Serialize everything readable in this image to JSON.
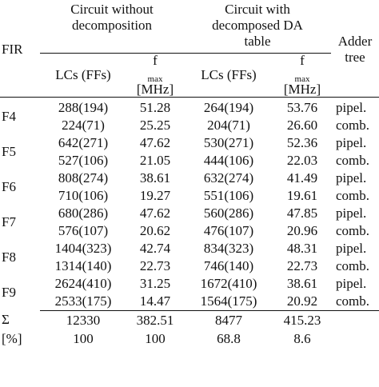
{
  "header": {
    "fir": "FIR",
    "group_a_line1": "Circuit without",
    "group_a_line2": "decomposition",
    "group_b_line1": "Circuit with",
    "group_b_line2": "decomposed DA",
    "group_b_line3": "table",
    "adder_line1": "Adder",
    "adder_line2": "tree",
    "lcs_a": "LCs (FFs)",
    "fmax_a_main": "f",
    "fmax_a_sub": "max",
    "fmax_a_unit": "[MHz]",
    "lcs_b": "LCs (FFs)",
    "fmax_b_main": "f",
    "fmax_b_sub": "max",
    "fmax_b_unit": "[MHz]"
  },
  "groups": [
    {
      "name": "F4",
      "rows": [
        {
          "lc_a": "288(194)",
          "fmax_a": "51.28",
          "lc_b": "264(194)",
          "fmax_b": "53.76",
          "adder": "pipel."
        },
        {
          "lc_a": "224(71)",
          "fmax_a": "25.25",
          "lc_b": "204(71)",
          "fmax_b": "26.60",
          "adder": "comb."
        }
      ]
    },
    {
      "name": "F5",
      "rows": [
        {
          "lc_a": "642(271)",
          "fmax_a": "47.62",
          "lc_b": "530(271)",
          "fmax_b": "52.36",
          "adder": "pipel."
        },
        {
          "lc_a": "527(106)",
          "fmax_a": "21.05",
          "lc_b": "444(106)",
          "fmax_b": "22.03",
          "adder": "comb."
        }
      ]
    },
    {
      "name": "F6",
      "rows": [
        {
          "lc_a": "808(274)",
          "fmax_a": "38.61",
          "lc_b": "632(274)",
          "fmax_b": "41.49",
          "adder": "pipel."
        },
        {
          "lc_a": "710(106)",
          "fmax_a": "19.27",
          "lc_b": "551(106)",
          "fmax_b": "19.61",
          "adder": "comb."
        }
      ]
    },
    {
      "name": "F7",
      "rows": [
        {
          "lc_a": "680(286)",
          "fmax_a": "47.62",
          "lc_b": "560(286)",
          "fmax_b": "47.85",
          "adder": "pipel."
        },
        {
          "lc_a": "576(107)",
          "fmax_a": "20.62",
          "lc_b": "476(107)",
          "fmax_b": "20.96",
          "adder": "comb."
        }
      ]
    },
    {
      "name": "F8",
      "rows": [
        {
          "lc_a": "1404(323)",
          "fmax_a": "42.74",
          "lc_b": "834(323)",
          "fmax_b": "48.31",
          "adder": "pipel."
        },
        {
          "lc_a": "1314(140)",
          "fmax_a": "22.73",
          "lc_b": "746(140)",
          "fmax_b": "22.73",
          "adder": "comb."
        }
      ]
    },
    {
      "name": "F9",
      "rows": [
        {
          "lc_a": "2624(410)",
          "fmax_a": "31.25",
          "lc_b": "1672(410)",
          "fmax_b": "38.61",
          "adder": "pipel."
        },
        {
          "lc_a": "2533(175)",
          "fmax_a": "14.47",
          "lc_b": "1564(175)",
          "fmax_b": "20.92",
          "adder": "comb."
        }
      ]
    }
  ],
  "totals": [
    {
      "label": "Σ",
      "lc_a": "12330",
      "fmax_a": "382.51",
      "lc_b": "8477",
      "fmax_b": "415.23"
    },
    {
      "label": "[%]",
      "lc_a": "100",
      "fmax_a": "100",
      "lc_b": "68.8",
      "fmax_b": "8.6"
    }
  ]
}
